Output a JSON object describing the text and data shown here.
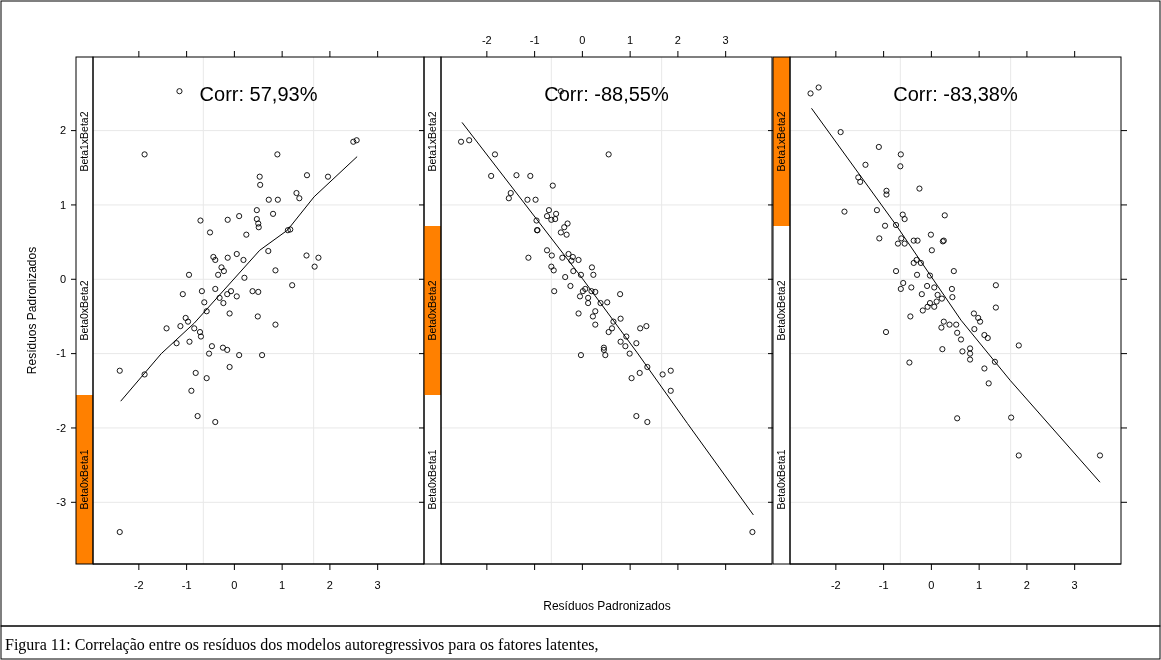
{
  "chart_data": [
    {
      "type": "scatter",
      "title": "Corr: 57,93%",
      "ylabel": "Resíduos Padronizados",
      "marker": "circle",
      "grid": "y",
      "annotations": [
        "Beta0xBeta1",
        "Beta0xBeta2",
        "Beta1xBeta2"
      ],
      "xlim": [
        -2.96,
        3.97
      ],
      "ylim": [
        -3.83,
        2.99
      ],
      "xticks": [
        -2,
        -1,
        0,
        1,
        2,
        3
      ],
      "yticks": [
        -3,
        -2,
        -1,
        0,
        1,
        2
      ],
      "ref_lines": [
        {
          "axis": "x",
          "value": -0.65,
          "label": null,
          "color": "#e8e8e8"
        },
        {
          "axis": "x",
          "value": 1.66,
          "label": null,
          "color": "#e8e8e8"
        }
      ],
      "series": [
        {
          "type": "scatter",
          "color": "#000000",
          "x": [
            -1.15,
            -1.88,
            2.49,
            2.56,
            0.9,
            0.53,
            0.54,
            1.52,
            1.96,
            0.72,
            0.91,
            1.3,
            1.36,
            0.47,
            0.81,
            0.1,
            -0.14,
            -0.71,
            0.47,
            0.5,
            0.51,
            1.12,
            1.17,
            -0.51,
            0.25,
            0.71,
            0.05,
            -0.44,
            -0.4,
            -0.14,
            0.19,
            1.51,
            1.76,
            -0.27,
            -0.22,
            -0.34,
            -0.95,
            0.86,
            1.68,
            0.21,
            1.21,
            -0.4,
            -0.68,
            0.38,
            0.5,
            -1.08,
            -0.07,
            -0.15,
            0.05,
            -0.31,
            -0.63,
            -0.23,
            -0.58,
            -0.1,
            0.49,
            -1.02,
            -0.97,
            -1.13,
            -1.42,
            -0.84,
            0.86,
            -1.21,
            -0.72,
            -0.7,
            -0.94,
            -0.47,
            -0.53,
            -0.24,
            -0.15,
            0.1,
            0.58,
            -0.1,
            -2.4,
            -1.88,
            -0.81,
            -0.58,
            -0.9,
            -0.77,
            -0.4,
            -2.4
          ],
          "values": [
            2.53,
            1.68,
            1.85,
            1.87,
            1.68,
            1.38,
            1.27,
            1.4,
            1.38,
            1.07,
            1.07,
            1.16,
            1.09,
            0.93,
            0.88,
            0.85,
            0.8,
            0.79,
            0.81,
            0.75,
            0.7,
            0.66,
            0.67,
            0.63,
            0.6,
            0.38,
            0.34,
            0.3,
            0.26,
            0.29,
            0.26,
            0.32,
            0.29,
            0.16,
            0.11,
            0.06,
            0.06,
            0.12,
            0.17,
            0.02,
            -0.08,
            -0.13,
            -0.16,
            -0.16,
            -0.17,
            -0.2,
            -0.16,
            -0.2,
            -0.23,
            -0.25,
            -0.31,
            -0.32,
            -0.43,
            -0.46,
            -0.5,
            -0.52,
            -0.57,
            -0.63,
            -0.66,
            -0.66,
            -0.61,
            -0.86,
            -0.71,
            -0.77,
            -0.84,
            -0.9,
            -1.0,
            -0.92,
            -0.95,
            -1.02,
            -1.02,
            -1.18,
            -1.23,
            -1.28,
            -1.26,
            -1.33,
            -1.5,
            -1.84,
            -1.92,
            -3.4
          ]
        },
        {
          "type": "line",
          "color": "#000000",
          "marker": "none",
          "x": [
            -2.38,
            -1.53,
            -0.84,
            0.53,
            1.11,
            1.67,
            2.57
          ],
          "values": [
            -1.64,
            -1.0,
            -0.59,
            0.39,
            0.66,
            1.11,
            1.65
          ]
        }
      ]
    },
    {
      "type": "scatter",
      "title": "Corr: -88,55%",
      "xlabel": "Resíduos Padronizados",
      "marker": "circle",
      "grid": "y",
      "annotations": [
        "Beta0xBeta1",
        "Beta0xBeta2",
        "Beta1xBeta2",
        "Figura 11: Correlação entre os resíduos dos modelos autoregressivos para os fatores latentes,"
      ],
      "xlim": [
        -2.96,
        3.97
      ],
      "ylim": [
        -3.83,
        2.99
      ],
      "xticks": [
        -2,
        -1,
        0,
        1,
        2,
        3
      ],
      "tick_labels": "x",
      "yticks": [
        -3,
        -2,
        -1,
        0,
        1,
        2
      ],
      "ref_lines": [
        {
          "axis": "x",
          "value": -0.65,
          "label": null,
          "color": "#e8e8e8"
        },
        {
          "axis": "x",
          "value": 1.66,
          "label": null,
          "color": "#e8e8e8"
        }
      ],
      "series": [
        {
          "type": "scatter",
          "color": "#000000",
          "x": [
            -0.45,
            -2.54,
            -2.37,
            -1.83,
            0.55,
            -1.91,
            -1.38,
            -1.09,
            -0.62,
            -1.5,
            -1.54,
            -1.15,
            -0.98,
            -0.7,
            -0.74,
            -0.65,
            -0.57,
            -0.55,
            -0.96,
            -0.95,
            -0.94,
            -0.31,
            -0.38,
            -0.45,
            -0.33,
            -0.74,
            -0.64,
            -1.13,
            -0.42,
            -0.29,
            -0.2,
            -0.23,
            -0.08,
            -0.65,
            -0.6,
            0.2,
            0.23,
            -0.19,
            -0.03,
            -0.36,
            -0.25,
            -0.59,
            0.06,
            0.01,
            0.19,
            0.27,
            -0.05,
            0.12,
            0.79,
            0.12,
            0.38,
            0.52,
            -0.08,
            0.27,
            0.22,
            0.8,
            0.27,
            0.65,
            0.62,
            1.21,
            1.34,
            0.55,
            0.8,
            0.9,
            0.92,
            1.13,
            0.45,
            0.45,
            0.48,
            -0.03,
            0.99,
            1.36,
            1.2,
            1.03,
            1.68,
            1.85,
            1.85,
            1.13,
            1.36,
            3.56
          ],
          "values": [
            2.53,
            1.85,
            1.87,
            1.68,
            1.68,
            1.39,
            1.4,
            1.39,
            1.26,
            1.16,
            1.09,
            1.07,
            1.07,
            0.93,
            0.85,
            0.8,
            0.81,
            0.88,
            0.79,
            0.66,
            0.66,
            0.75,
            0.7,
            0.63,
            0.6,
            0.39,
            0.32,
            0.29,
            0.29,
            0.34,
            0.3,
            0.25,
            0.26,
            0.17,
            0.12,
            0.16,
            0.06,
            0.11,
            0.06,
            0.03,
            -0.09,
            -0.16,
            -0.13,
            -0.16,
            -0.16,
            -0.17,
            -0.23,
            -0.25,
            -0.2,
            -0.32,
            -0.32,
            -0.31,
            -0.46,
            -0.43,
            -0.5,
            -0.53,
            -0.61,
            -0.57,
            -0.66,
            -0.66,
            -0.63,
            -0.71,
            -0.84,
            -0.9,
            -0.77,
            -0.86,
            -0.92,
            -0.95,
            -1.02,
            -1.02,
            -1.0,
            -1.18,
            -1.26,
            -1.33,
            -1.28,
            -1.23,
            -1.5,
            -1.84,
            -1.92,
            -3.4
          ]
        },
        {
          "type": "line",
          "color": "#000000",
          "marker": "none",
          "x": [
            -2.52,
            0,
            1.15,
            2.2,
            3.58
          ],
          "values": [
            2.11,
            0.01,
            -0.99,
            -1.94,
            -3.17
          ]
        }
      ]
    },
    {
      "type": "scatter",
      "title": "Corr: -83,38%",
      "marker": "circle",
      "grid": "y",
      "annotations": [
        "Beta0xBeta1",
        "Beta0xBeta2",
        "Beta1xBeta2"
      ],
      "xlim": [
        -2.96,
        3.97
      ],
      "ylim": [
        -3.83,
        2.99
      ],
      "xticks": [
        -2,
        -1,
        0,
        1,
        2,
        3
      ],
      "tick_labels": "x",
      "yticks": [
        -3,
        -2,
        -1,
        0,
        1,
        2
      ],
      "ref_lines": [
        {
          "axis": "x",
          "value": -0.65,
          "label": null,
          "color": "#e8e8e8"
        },
        {
          "axis": "x",
          "value": 1.66,
          "label": null,
          "color": "#e8e8e8"
        }
      ],
      "series": [
        {
          "type": "scatter",
          "color": "#000000",
          "x": [
            -2.53,
            -2.36,
            -1.9,
            -1.1,
            -0.64,
            -0.65,
            -1.38,
            -1.53,
            -1.49,
            -0.25,
            -0.94,
            -0.94,
            -1.82,
            -1.14,
            -0.6,
            -0.56,
            0.28,
            -0.97,
            -0.74,
            -1.09,
            -0.63,
            -0.7,
            -0.56,
            -0.01,
            -0.37,
            -0.29,
            0.24,
            0.26,
            0.01,
            -0.37,
            -0.31,
            -0.22,
            -0.74,
            -0.3,
            0.47,
            -0.03,
            -0.59,
            -0.64,
            -0.42,
            -0.09,
            0.06,
            0.43,
            0.44,
            -0.2,
            0.13,
            0.22,
            0.11,
            -0.03,
            -0.08,
            0.06,
            -0.18,
            1.35,
            1.35,
            -0.44,
            0.89,
            0.98,
            1.02,
            0.26,
            0.38,
            0.52,
            0.21,
            0.9,
            -0.95,
            0.54,
            0.62,
            1.11,
            1.18,
            0.23,
            0.65,
            0.81,
            0.81,
            0.81,
            1.83,
            -0.46,
            1.33,
            1.11,
            1.2,
            0.54,
            1.67,
            1.83,
            3.53
          ],
          "values": [
            2.5,
            2.58,
            1.98,
            1.78,
            1.68,
            1.52,
            1.54,
            1.37,
            1.31,
            1.22,
            1.19,
            1.14,
            0.91,
            0.93,
            0.87,
            0.81,
            0.86,
            0.72,
            0.73,
            0.55,
            0.55,
            0.48,
            0.48,
            0.6,
            0.52,
            0.52,
            0.51,
            0.52,
            0.39,
            0.22,
            0.26,
            0.22,
            0.11,
            0.06,
            0.11,
            0.05,
            -0.05,
            -0.13,
            -0.11,
            -0.09,
            -0.11,
            -0.13,
            -0.24,
            -0.2,
            -0.21,
            -0.26,
            -0.3,
            -0.32,
            -0.37,
            -0.37,
            -0.42,
            -0.08,
            -0.38,
            -0.5,
            -0.46,
            -0.52,
            -0.57,
            -0.57,
            -0.61,
            -0.61,
            -0.65,
            -0.67,
            -0.71,
            -0.72,
            -0.81,
            -0.75,
            -0.79,
            -0.94,
            -0.97,
            -0.93,
            -1.0,
            -1.08,
            -0.89,
            -1.12,
            -1.11,
            -1.2,
            -1.4,
            -1.87,
            -1.86,
            -2.37,
            -2.37
          ]
        },
        {
          "type": "line",
          "color": "#000000",
          "marker": "none",
          "x": [
            -2.51,
            -0.74,
            0.62,
            1.65,
            3.53
          ],
          "values": [
            2.3,
            0.73,
            -0.55,
            -1.36,
            -2.73
          ]
        }
      ]
    }
  ]
}
